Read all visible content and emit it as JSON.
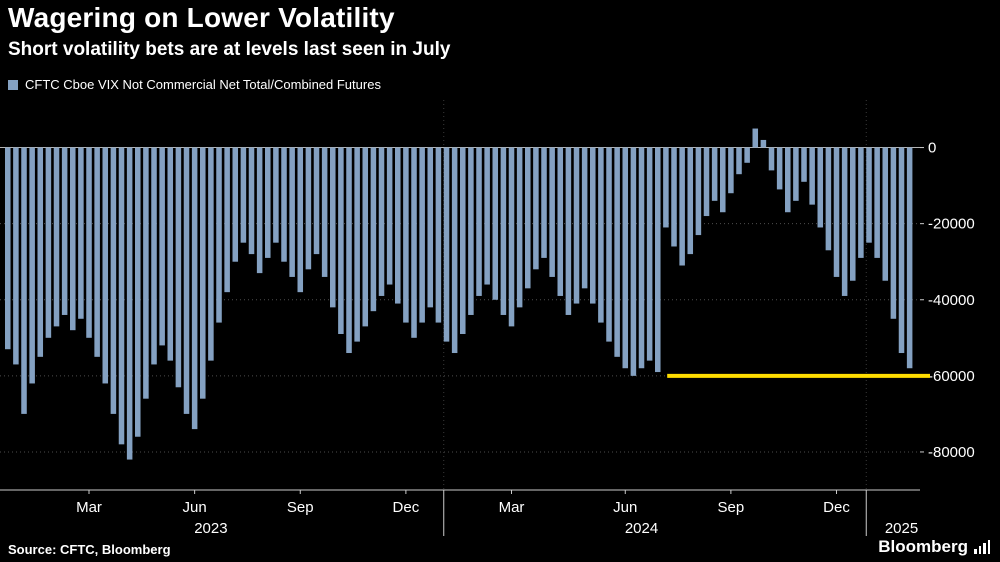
{
  "header": {
    "title": "Wagering on Lower Volatility",
    "subtitle": "Short volatility bets are at levels last seen in July"
  },
  "legend": {
    "label": "CFTC Cboe VIX Not Commercial Net Total/Combined Futures"
  },
  "footer": {
    "source": "Source: CFTC, Bloomberg",
    "brand": "Bloomberg"
  },
  "chart_data": {
    "type": "bar",
    "title": "Wagering on Lower Volatility",
    "subtitle": "Short volatility bets are at levels last seen in July",
    "series_name": "CFTC Cboe VIX Not Commercial Net Total/Combined Futures",
    "frequency": "weekly",
    "values": [
      -53000,
      -57000,
      -70000,
      -62000,
      -55000,
      -50000,
      -47000,
      -44000,
      -48000,
      -45000,
      -50000,
      -55000,
      -62000,
      -70000,
      -78000,
      -82000,
      -76000,
      -66000,
      -57000,
      -52000,
      -56000,
      -63000,
      -70000,
      -74000,
      -66000,
      -56000,
      -46000,
      -38000,
      -30000,
      -25000,
      -28000,
      -33000,
      -29000,
      -25000,
      -30000,
      -34000,
      -38000,
      -32000,
      -28000,
      -34000,
      -42000,
      -49000,
      -54000,
      -51000,
      -47000,
      -43000,
      -39000,
      -36000,
      -41000,
      -46000,
      -50000,
      -46000,
      -42000,
      -46000,
      -51000,
      -54000,
      -49000,
      -44000,
      -39000,
      -36000,
      -40000,
      -44000,
      -47000,
      -42000,
      -37000,
      -32000,
      -29000,
      -34000,
      -39000,
      -44000,
      -41000,
      -37000,
      -41000,
      -46000,
      -51000,
      -55000,
      -58000,
      -60000,
      -58000,
      -56000,
      -59000,
      -21000,
      -26000,
      -31000,
      -28000,
      -23000,
      -18000,
      -14000,
      -17000,
      -12000,
      -7000,
      -4000,
      5000,
      2000,
      -6000,
      -11000,
      -17000,
      -14000,
      -9000,
      -15000,
      -21000,
      -27000,
      -34000,
      -39000,
      -35000,
      -29000,
      -25000,
      -29000,
      -35000,
      -45000,
      -54000,
      -58000
    ],
    "x_ticks": [
      {
        "index": 10,
        "label": "Mar"
      },
      {
        "index": 23,
        "label": "Jun"
      },
      {
        "index": 36,
        "label": "Sep"
      },
      {
        "index": 49,
        "label": "Dec"
      },
      {
        "index": 62,
        "label": "Mar"
      },
      {
        "index": 76,
        "label": "Jun"
      },
      {
        "index": 89,
        "label": "Sep"
      },
      {
        "index": 102,
        "label": "Dec"
      }
    ],
    "year_labels": [
      {
        "index": 25,
        "label": "2023"
      },
      {
        "index": 78,
        "label": "2024"
      },
      {
        "index": 110,
        "label": "2025"
      }
    ],
    "year_separator_indices": [
      54,
      106
    ],
    "y_ticks": [
      0,
      -20000,
      -40000,
      -60000,
      -80000
    ],
    "ylim": [
      -90000,
      12500
    ],
    "grid": true,
    "legend_position": "top-left",
    "bar_color": "#84a1c2",
    "grid_color": "#4d4d4d",
    "zero_line_color": "#b5b5b5",
    "axis_color": "#cccccc",
    "reference_line": {
      "value": -60000,
      "color": "#ffdd00",
      "start_index": 81.5
    }
  }
}
